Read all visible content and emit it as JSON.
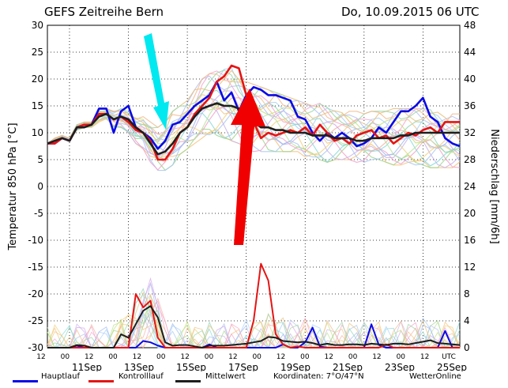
{
  "header": {
    "title": "GEFS Zeitreihe Bern",
    "date": "Do, 10.09.2015 06 UTC"
  },
  "legend": {
    "main": "Hauptlauf",
    "control": "Kontrolllauf",
    "mean": "Mittelwert",
    "coords": "Koordinaten: 7°O/47°N",
    "brand": "WetterOnline"
  },
  "colors": {
    "main": "#0a0ae6",
    "control": "#e61414",
    "mean": "#1e1e1e",
    "arrow_cyan": "#00e8f0",
    "arrow_red": "#f00000",
    "grid": "#000000"
  },
  "chart_data": {
    "type": "line",
    "title": "GEFS Zeitreihe Bern",
    "ylabel": "Temperatur 850 hPa [°C]",
    "y2label": "Niederschlag [mm/6h]",
    "xlabel": "UTC",
    "ylim": [
      -30,
      30
    ],
    "y2lim": [
      0,
      48
    ],
    "yticks": [
      30,
      25,
      20,
      15,
      10,
      5,
      0,
      -5,
      -10,
      -15,
      -20,
      -25,
      -30
    ],
    "y2ticks": [
      48,
      44,
      40,
      36,
      32,
      28,
      24,
      20,
      16,
      12,
      8,
      4,
      0
    ],
    "x_hour_labels": [
      "12",
      "00",
      "12",
      "00",
      "12",
      "00",
      "12",
      "00",
      "12",
      "00",
      "12",
      "00",
      "12",
      "00",
      "12",
      "00",
      "12",
      "UTC"
    ],
    "x_date_labels": [
      "11Sep",
      "13Sep",
      "15Sep",
      "17Sep",
      "19Sep",
      "21Sep",
      "23Sep",
      "25Sep"
    ],
    "x_steps_hours": 6,
    "series": [
      {
        "name": "Hauptlauf",
        "role": "temperature",
        "color": "#0a0ae6",
        "values": [
          8,
          8,
          9,
          8.5,
          11,
          11.5,
          11.5,
          14.5,
          14.5,
          10,
          14,
          15,
          11,
          10,
          9,
          7,
          8.5,
          11.5,
          12,
          13.5,
          15,
          16,
          17,
          19.5,
          16,
          17.5,
          14,
          17,
          18.5,
          18,
          17,
          17,
          16.5,
          16,
          13,
          12.5,
          10,
          8.5,
          10,
          9,
          10,
          9,
          7.5,
          8,
          9,
          11,
          10,
          12,
          14,
          14,
          15,
          16.5,
          13,
          12,
          9,
          8,
          7.5
        ]
      },
      {
        "name": "Kontrolllauf",
        "role": "temperature",
        "color": "#e61414",
        "values": [
          8,
          8,
          9,
          8.5,
          11,
          11.5,
          11.5,
          13.5,
          13.5,
          12.5,
          13,
          12,
          10.5,
          10,
          8.5,
          5,
          5,
          7,
          10,
          11,
          13.5,
          15,
          16.5,
          19.5,
          20.5,
          22.5,
          22,
          17,
          12,
          9,
          10,
          9.5,
          10,
          10.5,
          10,
          11,
          9.5,
          11.5,
          10,
          8.5,
          9,
          8,
          9.5,
          10,
          10.5,
          9,
          9.5,
          8,
          9,
          10,
          9.5,
          10.5,
          11,
          10,
          12,
          12,
          12
        ]
      },
      {
        "name": "Mittelwert",
        "role": "temperature",
        "color": "#1e1e1e",
        "values": [
          8,
          8.5,
          9,
          8.5,
          11,
          11,
          11.5,
          13,
          13.5,
          12.5,
          13,
          12.5,
          11,
          10,
          8,
          6,
          6.5,
          8,
          10,
          11,
          13,
          14.5,
          15,
          15.5,
          15,
          15,
          14.5,
          13,
          12,
          11,
          11,
          10.5,
          10.5,
          10,
          10,
          10,
          9.5,
          9.5,
          9.5,
          9,
          9,
          9,
          8.5,
          8.5,
          9,
          9,
          9,
          9,
          9.5,
          9.5,
          10,
          10,
          10,
          10,
          10,
          10,
          10
        ]
      },
      {
        "name": "Hauptlauf Niederschlag",
        "role": "precipitation",
        "color": "#0a0ae6",
        "values": [
          0,
          0,
          0,
          0,
          0.3,
          0,
          0,
          0,
          0,
          0,
          0,
          0,
          0,
          1,
          0.8,
          0.3,
          0,
          0,
          0,
          0,
          0,
          0,
          0.5,
          0,
          0,
          0,
          0,
          0,
          0,
          0,
          0,
          0,
          0.5,
          0,
          0,
          0.8,
          3,
          0.2,
          0,
          0,
          0,
          0,
          0,
          0,
          3.5,
          0.4,
          0,
          0,
          0,
          0,
          0,
          0,
          0,
          0,
          2.5,
          0,
          0
        ]
      },
      {
        "name": "Kontrolllauf Niederschlag",
        "role": "precipitation",
        "color": "#e61414",
        "values": [
          0,
          0,
          0,
          0,
          0,
          0,
          0,
          0,
          0,
          0,
          0,
          0,
          8,
          6,
          7,
          1.5,
          0,
          0,
          0,
          0,
          0,
          0,
          0,
          0,
          0,
          0,
          0,
          0,
          4,
          12.5,
          10,
          2,
          0.5,
          0,
          0.2,
          0,
          0,
          0,
          0,
          0,
          0,
          0,
          0,
          0,
          0,
          0,
          0.5,
          0,
          0,
          0,
          0,
          0,
          0,
          0,
          0,
          0,
          0
        ]
      },
      {
        "name": "Mittelwert Niederschlag",
        "role": "precipitation",
        "color": "#1e1e1e",
        "values": [
          0,
          0,
          0,
          0,
          0.4,
          0.3,
          0,
          0,
          0,
          0,
          2,
          1.5,
          3.5,
          5.5,
          6.2,
          4.5,
          0.8,
          0.3,
          0.4,
          0.4,
          0.2,
          0,
          0.3,
          0.3,
          0.3,
          0.4,
          0.5,
          0.6,
          0.8,
          1,
          1.6,
          1.5,
          1,
          0.9,
          0.8,
          0.9,
          0.7,
          0.4,
          0.6,
          0.4,
          0.4,
          0.5,
          0.5,
          0.4,
          0.6,
          0.5,
          0.4,
          0.6,
          0.6,
          0.5,
          0.7,
          0.9,
          1.1,
          0.7,
          0.6,
          0.5,
          0.4
        ]
      }
    ],
    "ensemble": {
      "count": 20,
      "temperature_spread_low": [
        8,
        8,
        9,
        8.5,
        10.5,
        11,
        11,
        12,
        12.5,
        11,
        11,
        10,
        8,
        7,
        4.5,
        3,
        3,
        4,
        6,
        7,
        8,
        9,
        9.5,
        9.5,
        9,
        8.5,
        8,
        7,
        6.5,
        6.5,
        6.5,
        6.5,
        6.5,
        6.5,
        6.5,
        5.5,
        5.5,
        5,
        4.5,
        5,
        5,
        5,
        4.5,
        4.5,
        5,
        5,
        4.5,
        4,
        4,
        4.5,
        4,
        4,
        3.5,
        3.5,
        3.5,
        3.5,
        3.5
      ],
      "temperature_spread_high": [
        8,
        9,
        9.5,
        9,
        11.5,
        12,
        12,
        14.5,
        14.5,
        14,
        14.5,
        14,
        13,
        13,
        12,
        11,
        12,
        14,
        15,
        16,
        18,
        20,
        21,
        21.5,
        22,
        22.5,
        21,
        19.5,
        19,
        18.5,
        18,
        17.5,
        17,
        16.5,
        16,
        15.5,
        15,
        15.5,
        15,
        14.5,
        14.5,
        14,
        14,
        13.5,
        14,
        14,
        14,
        14.5,
        14.5,
        14.5,
        14.5,
        14.5,
        14.5,
        14,
        13.5,
        13.5,
        13.5
      ]
    }
  },
  "annotations": [
    {
      "type": "arrow",
      "color": "cyan",
      "direction": "down"
    },
    {
      "type": "arrow",
      "color": "red",
      "direction": "up"
    }
  ]
}
